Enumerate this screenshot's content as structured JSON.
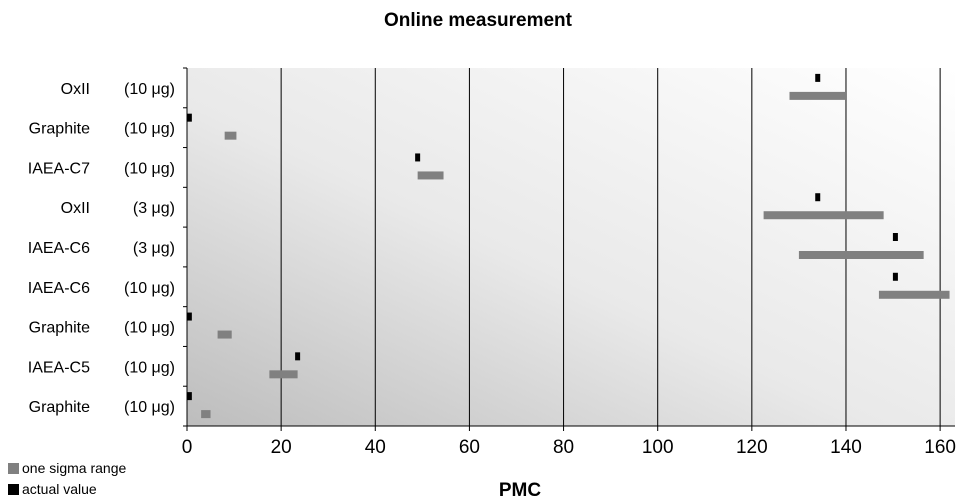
{
  "chart_data": {
    "type": "bar",
    "title": "Online measurement",
    "xlabel": "PMC",
    "ylabel": "",
    "xlim": [
      0,
      165
    ],
    "x_ticks": [
      0,
      20,
      40,
      60,
      80,
      100,
      120,
      140,
      160
    ],
    "grid": true,
    "legend_position": "bottom-left",
    "legend": [
      {
        "label": "one sigma range",
        "color": "#808080"
      },
      {
        "label": "actual value",
        "color": "#000000"
      }
    ],
    "categories": [
      {
        "name": "OxII",
        "mass": "(10 μg)"
      },
      {
        "name": "Graphite",
        "mass": "(10 μg)"
      },
      {
        "name": "IAEA-C7",
        "mass": "(10 μg)"
      },
      {
        "name": "OxII",
        "mass": "(3 μg)"
      },
      {
        "name": "IAEA-C6",
        "mass": "(3 μg)"
      },
      {
        "name": "IAEA-C6",
        "mass": "(10 μg)"
      },
      {
        "name": "Graphite",
        "mass": "(10 μg)"
      },
      {
        "name": "IAEA-C5",
        "mass": "(10 μg)"
      },
      {
        "name": "Graphite",
        "mass": "(10 μg)"
      }
    ],
    "series": [
      {
        "name": "one sigma range",
        "values": [
          [
            128,
            140
          ],
          [
            8,
            10.5
          ],
          [
            49,
            54.5
          ],
          [
            122.5,
            148
          ],
          [
            130,
            156.5
          ],
          [
            147,
            162
          ],
          [
            6.5,
            9.5
          ],
          [
            17.5,
            23.5
          ],
          [
            3,
            5
          ]
        ]
      },
      {
        "name": "actual value",
        "values": [
          134,
          0.5,
          49,
          134,
          150.5,
          150.5,
          0.5,
          23.5,
          0.5
        ]
      }
    ]
  }
}
